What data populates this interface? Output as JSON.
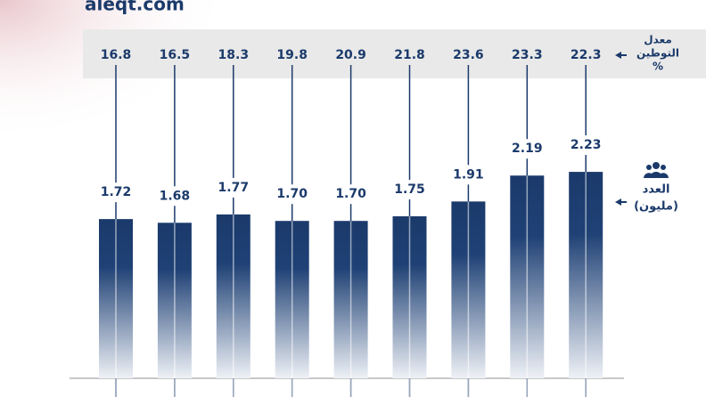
{
  "site": "aleqt.com",
  "chart_data": {
    "type": "bar",
    "values": [
      1.72,
      1.68,
      1.77,
      1.7,
      1.7,
      1.75,
      1.91,
      2.19,
      2.23
    ],
    "value_labels": [
      "1.72",
      "1.68",
      "1.77",
      "1.70",
      "1.70",
      "1.75",
      "1.91",
      "2.19",
      "2.23"
    ],
    "color": "#1b3a6b",
    "ylim": [
      0,
      2.5
    ],
    "rate_values": [
      16.8,
      16.5,
      18.3,
      19.8,
      20.9,
      21.8,
      23.6,
      23.3,
      22.3
    ],
    "rate_label": [
      "معدل",
      "التوطين",
      "%"
    ],
    "count_label": [
      "العدد",
      "(مليون)"
    ]
  }
}
